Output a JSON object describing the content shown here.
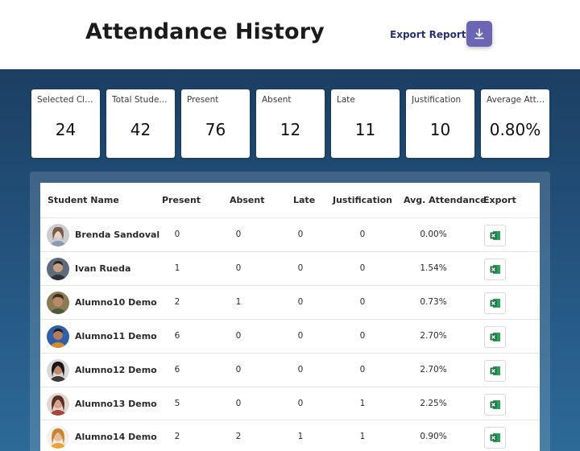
{
  "header": {
    "title": "Attendance History",
    "export_label": "Export Report",
    "download_icon": "download-icon"
  },
  "colors": {
    "accent": "#6a66b4",
    "link": "#2a2f7a",
    "background_top": "#1b3f63",
    "background_bottom": "#2d6a98",
    "excel_green": "#1e7145"
  },
  "stats": [
    {
      "label": "Selected Cla...",
      "value": "24"
    },
    {
      "label": "Total Stude...",
      "value": "42"
    },
    {
      "label": "Present",
      "value": "76"
    },
    {
      "label": "Absent",
      "value": "12"
    },
    {
      "label": "Late",
      "value": "11"
    },
    {
      "label": "Justification",
      "value": "10"
    },
    {
      "label": "Average Atte...",
      "value": "0.80%"
    }
  ],
  "table": {
    "columns": [
      "Student Name",
      "Present",
      "Absent",
      "Late",
      "Justification",
      "Avg. Attendance",
      "Export"
    ],
    "export_icon": "excel-icon",
    "rows": [
      {
        "name": "Brenda Sandoval",
        "present": "0",
        "absent": "0",
        "late": "0",
        "justification": "0",
        "avg": "0.00%"
      },
      {
        "name": "Ivan Rueda",
        "present": "1",
        "absent": "0",
        "late": "0",
        "justification": "0",
        "avg": "1.54%"
      },
      {
        "name": "Alumno10 Demo",
        "present": "2",
        "absent": "1",
        "late": "0",
        "justification": "0",
        "avg": "0.73%"
      },
      {
        "name": "Alumno11 Demo",
        "present": "6",
        "absent": "0",
        "late": "0",
        "justification": "0",
        "avg": "2.70%"
      },
      {
        "name": "Alumno12 Demo",
        "present": "6",
        "absent": "0",
        "late": "0",
        "justification": "0",
        "avg": "2.70%"
      },
      {
        "name": "Alumno13 Demo",
        "present": "5",
        "absent": "0",
        "late": "0",
        "justification": "1",
        "avg": "2.25%"
      },
      {
        "name": "Alumno14 Demo",
        "present": "2",
        "absent": "2",
        "late": "1",
        "justification": "1",
        "avg": "0.90%"
      }
    ]
  }
}
